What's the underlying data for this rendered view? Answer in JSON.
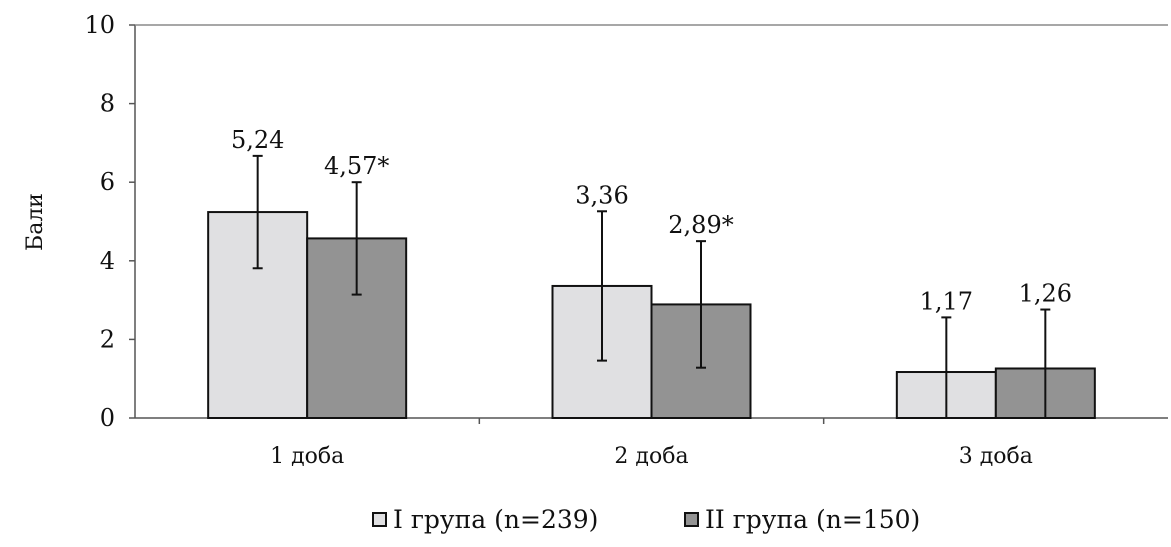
{
  "chart_data": {
    "type": "bar",
    "ylabel": "Бали",
    "xlabel": "",
    "ylim": [
      0,
      10
    ],
    "yticks": [
      "0",
      "2",
      "4",
      "6",
      "8",
      "10"
    ],
    "grid": false,
    "legend_position": "bottom",
    "categories": [
      "1 доба",
      "2 доба",
      "3 доба"
    ],
    "series": [
      {
        "name": "І група (n=239)",
        "color": "#e0e0e2",
        "values": [
          5.24,
          3.36,
          1.17
        ],
        "labels": [
          "5,24",
          "3,36",
          "1,17"
        ],
        "error": [
          1.43,
          1.9,
          1.39
        ]
      },
      {
        "name": "ІІ група (n=150)",
        "color": "#939393",
        "values": [
          4.57,
          2.89,
          1.26
        ],
        "labels": [
          "4,57*",
          "2,89*",
          "1,26"
        ],
        "error": [
          1.43,
          1.61,
          1.5
        ]
      }
    ]
  }
}
